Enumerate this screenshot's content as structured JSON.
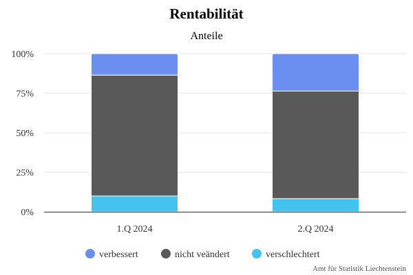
{
  "chart_data": {
    "type": "bar",
    "stacked": true,
    "title": "Rentabilität",
    "subtitle": "Anteile",
    "categories": [
      "1.Q 2024",
      "2.Q 2024"
    ],
    "y_ticks": [
      "0%",
      "25%",
      "50%",
      "75%",
      "100%"
    ],
    "ylim": [
      0,
      100
    ],
    "grid": true,
    "legend_position": "bottom",
    "series": [
      {
        "name": "verschlechtert",
        "color": "#45c3f0",
        "values": [
          10,
          8.3
        ]
      },
      {
        "name": "nicht veändert",
        "color": "#595959",
        "values": [
          76.4,
          68
        ]
      },
      {
        "name": "verbessert",
        "color": "#6b8ff0",
        "values": [
          13.6,
          23.7
        ]
      }
    ],
    "legend_order": [
      "verbessert",
      "nicht veändert",
      "verschlechtert"
    ],
    "credit": "Amt für Statistik Liechtenstein"
  }
}
